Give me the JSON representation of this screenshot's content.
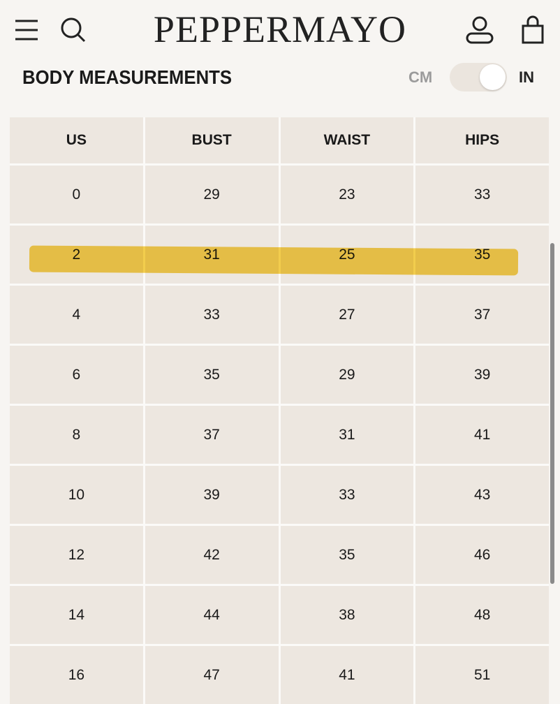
{
  "header": {
    "brand": "PEPPERMAYO"
  },
  "section": {
    "title": "BODY MEASUREMENTS",
    "unit_off": "CM",
    "unit_on": "IN"
  },
  "table": {
    "columns": [
      "US",
      "BUST",
      "WAIST",
      "HIPS"
    ],
    "rows": [
      [
        0,
        29,
        23,
        33
      ],
      [
        2,
        31,
        25,
        35
      ],
      [
        4,
        33,
        27,
        37
      ],
      [
        6,
        35,
        29,
        39
      ],
      [
        8,
        37,
        31,
        41
      ],
      [
        10,
        39,
        33,
        43
      ],
      [
        12,
        42,
        35,
        46
      ],
      [
        14,
        44,
        38,
        48
      ],
      [
        16,
        47,
        41,
        51
      ]
    ]
  }
}
